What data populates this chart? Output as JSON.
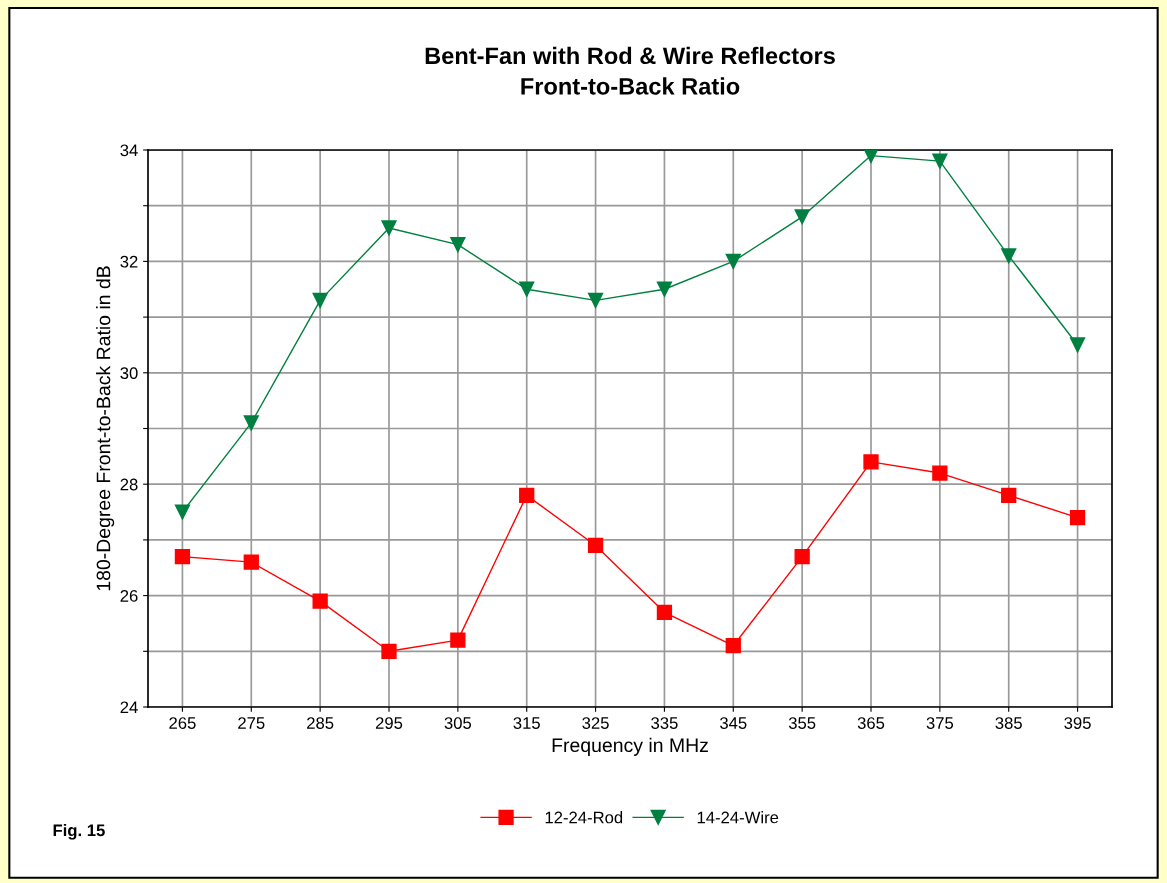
{
  "chart_data": {
    "type": "line",
    "title": "Bent-Fan with Rod & Wire Reflectors\nFront-to-Back Ratio",
    "xlabel": "Frequency in MHz",
    "ylabel": "180-Degree Front-to-Back Ratio in dB",
    "categories": [
      "265",
      "275",
      "285",
      "295",
      "305",
      "315",
      "325",
      "335",
      "345",
      "355",
      "365",
      "375",
      "385",
      "395"
    ],
    "series": [
      {
        "name": "12-24-Rod",
        "color": "#ff0000",
        "marker": "square",
        "values": [
          26.7,
          26.6,
          25.9,
          25.0,
          25.2,
          27.8,
          26.9,
          25.7,
          25.1,
          26.7,
          28.4,
          28.2,
          27.8,
          27.4
        ]
      },
      {
        "name": "14-24-Wire",
        "color": "#008040",
        "marker": "triangle",
        "values": [
          27.5,
          29.1,
          31.3,
          32.6,
          32.3,
          31.5,
          31.3,
          31.5,
          32.0,
          32.8,
          33.9,
          33.8,
          32.1,
          30.5
        ]
      }
    ],
    "ylim": [
      24,
      34
    ],
    "yticks": [
      24,
      {
        "value": 25,
        "label": null
      },
      26,
      {
        "value": 27,
        "label": null
      },
      28,
      {
        "value": 29,
        "label": null
      },
      30,
      {
        "value": 31,
        "label": null
      },
      32,
      {
        "value": 33,
        "label": null
      },
      34
    ],
    "grid": true,
    "legend": "bottom",
    "line_style": "solid",
    "annotations": [
      "Fig. 15"
    ]
  }
}
